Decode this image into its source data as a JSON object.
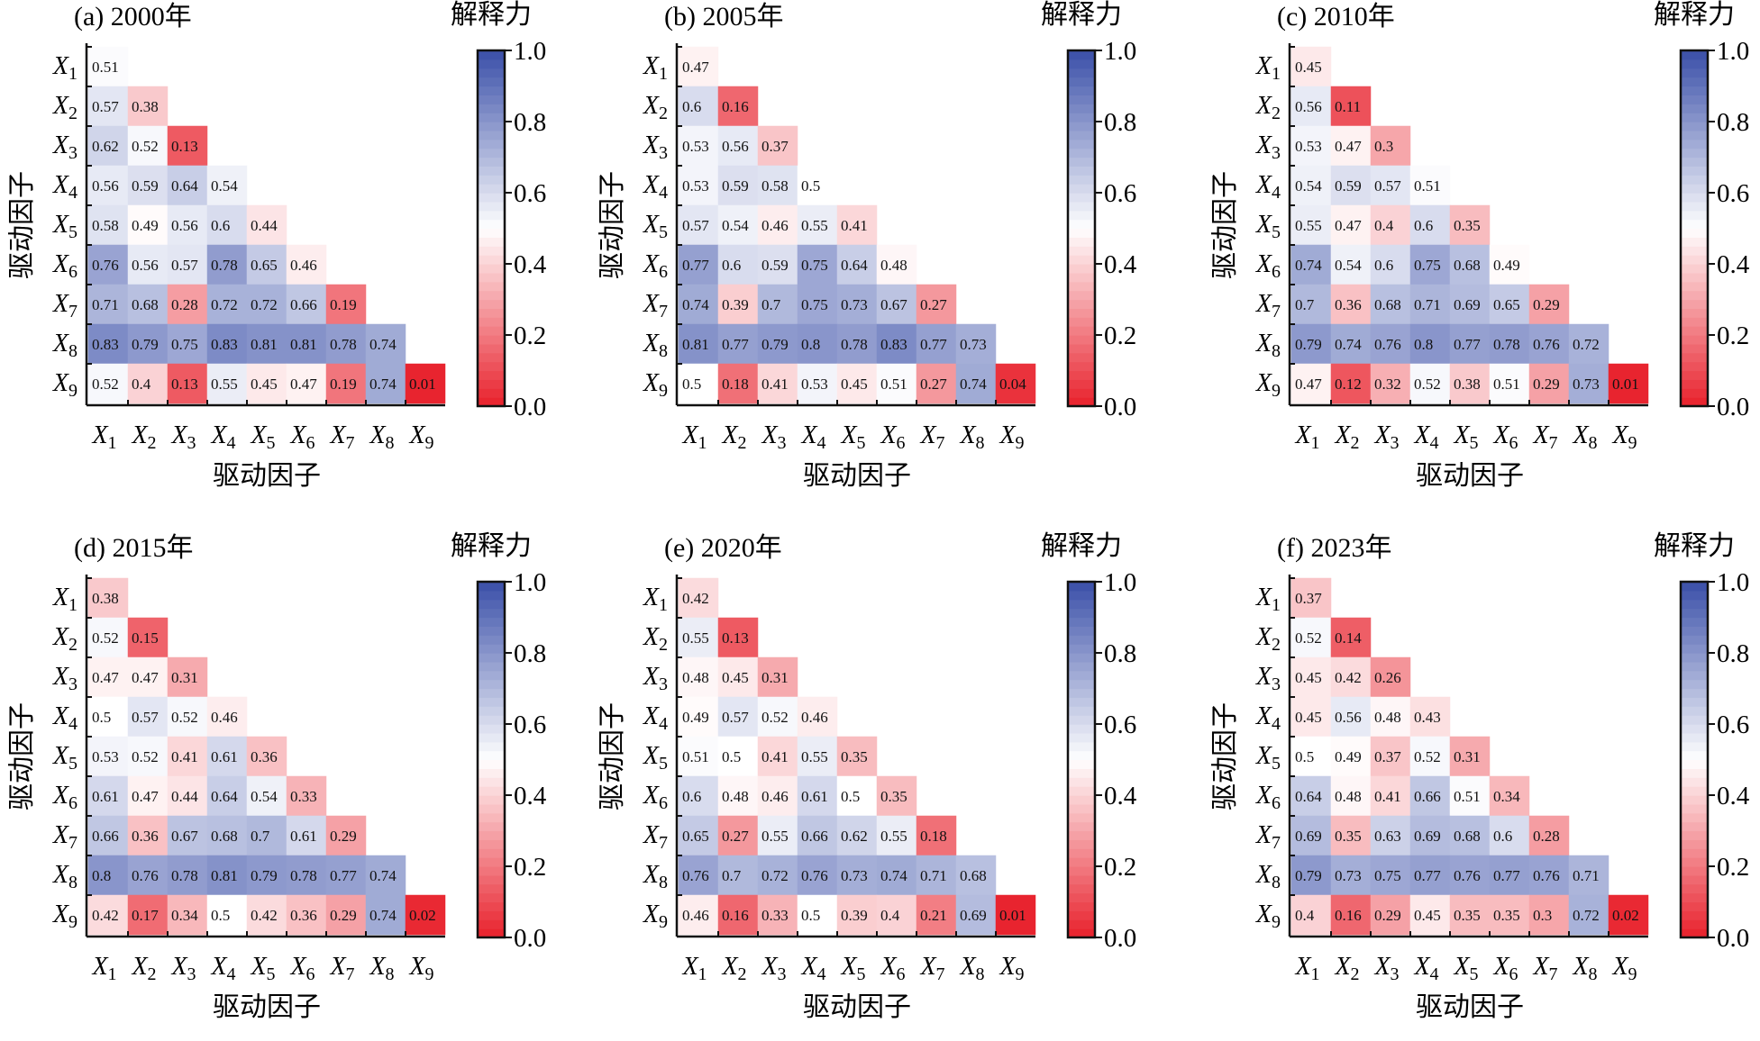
{
  "chart_data": [
    {
      "type": "heatmap",
      "title": "(a) 2000年",
      "xlabel": "驱动因子",
      "ylabel": "驱动因子",
      "colorbar_title": "解释力",
      "colorbar_range": [
        0.0,
        1.0
      ],
      "colorbar_ticks": [
        "0.0",
        "0.2",
        "0.4",
        "0.6",
        "0.8",
        "1.0"
      ],
      "categories": [
        "X1",
        "X2",
        "X3",
        "X4",
        "X5",
        "X6",
        "X7",
        "X8",
        "X9"
      ],
      "values": [
        [
          0.51
        ],
        [
          0.57,
          0.38
        ],
        [
          0.62,
          0.52,
          0.13
        ],
        [
          0.56,
          0.59,
          0.64,
          0.54
        ],
        [
          0.58,
          0.49,
          0.56,
          0.6,
          0.44
        ],
        [
          0.76,
          0.56,
          0.57,
          0.78,
          0.65,
          0.46
        ],
        [
          0.71,
          0.68,
          0.28,
          0.72,
          0.72,
          0.66,
          0.19
        ],
        [
          0.83,
          0.79,
          0.75,
          0.83,
          0.81,
          0.81,
          0.78,
          0.74
        ],
        [
          0.52,
          0.4,
          0.13,
          0.55,
          0.45,
          0.47,
          0.19,
          0.74,
          0.01
        ]
      ]
    },
    {
      "type": "heatmap",
      "title": "(b) 2005年",
      "xlabel": "驱动因子",
      "ylabel": "驱动因子",
      "colorbar_title": "解释力",
      "colorbar_range": [
        0.0,
        1.0
      ],
      "colorbar_ticks": [
        "0.0",
        "0.2",
        "0.4",
        "0.6",
        "0.8",
        "1.0"
      ],
      "categories": [
        "X1",
        "X2",
        "X3",
        "X4",
        "X5",
        "X6",
        "X7",
        "X8",
        "X9"
      ],
      "values": [
        [
          0.47
        ],
        [
          0.6,
          0.16
        ],
        [
          0.53,
          0.56,
          0.37
        ],
        [
          0.53,
          0.59,
          0.58,
          0.5
        ],
        [
          0.57,
          0.54,
          0.46,
          0.55,
          0.41
        ],
        [
          0.77,
          0.6,
          0.59,
          0.75,
          0.64,
          0.48
        ],
        [
          0.74,
          0.39,
          0.7,
          0.75,
          0.73,
          0.67,
          0.27
        ],
        [
          0.81,
          0.77,
          0.79,
          0.8,
          0.78,
          0.83,
          0.77,
          0.73
        ],
        [
          0.5,
          0.18,
          0.41,
          0.53,
          0.45,
          0.51,
          0.27,
          0.74,
          0.04
        ]
      ]
    },
    {
      "type": "heatmap",
      "title": "(c) 2010年",
      "xlabel": "驱动因子",
      "ylabel": "驱动因子",
      "colorbar_title": "解释力",
      "colorbar_range": [
        0.0,
        1.0
      ],
      "colorbar_ticks": [
        "0.0",
        "0.2",
        "0.4",
        "0.6",
        "0.8",
        "1.0"
      ],
      "categories": [
        "X1",
        "X2",
        "X3",
        "X4",
        "X5",
        "X6",
        "X7",
        "X8",
        "X9"
      ],
      "values": [
        [
          0.45
        ],
        [
          0.56,
          0.11
        ],
        [
          0.53,
          0.47,
          0.3
        ],
        [
          0.54,
          0.59,
          0.57,
          0.51
        ],
        [
          0.55,
          0.47,
          0.4,
          0.6,
          0.35
        ],
        [
          0.74,
          0.54,
          0.6,
          0.75,
          0.68,
          0.49
        ],
        [
          0.7,
          0.36,
          0.68,
          0.71,
          0.69,
          0.65,
          0.29
        ],
        [
          0.79,
          0.74,
          0.76,
          0.8,
          0.77,
          0.78,
          0.76,
          0.72
        ],
        [
          0.47,
          0.12,
          0.32,
          0.52,
          0.38,
          0.51,
          0.29,
          0.73,
          0.01
        ]
      ]
    },
    {
      "type": "heatmap",
      "title": "(d) 2015年",
      "xlabel": "驱动因子",
      "ylabel": "驱动因子",
      "colorbar_title": "解释力",
      "colorbar_range": [
        0.0,
        1.0
      ],
      "colorbar_ticks": [
        "0.0",
        "0.2",
        "0.4",
        "0.6",
        "0.8",
        "1.0"
      ],
      "categories": [
        "X1",
        "X2",
        "X3",
        "X4",
        "X5",
        "X6",
        "X7",
        "X8",
        "X9"
      ],
      "values": [
        [
          0.38
        ],
        [
          0.52,
          0.15
        ],
        [
          0.47,
          0.47,
          0.31
        ],
        [
          0.5,
          0.57,
          0.52,
          0.46
        ],
        [
          0.53,
          0.52,
          0.41,
          0.61,
          0.36
        ],
        [
          0.61,
          0.47,
          0.44,
          0.64,
          0.54,
          0.33
        ],
        [
          0.66,
          0.36,
          0.67,
          0.68,
          0.7,
          0.61,
          0.29
        ],
        [
          0.8,
          0.76,
          0.78,
          0.81,
          0.79,
          0.78,
          0.77,
          0.74
        ],
        [
          0.42,
          0.17,
          0.34,
          0.5,
          0.42,
          0.36,
          0.29,
          0.74,
          0.02
        ]
      ]
    },
    {
      "type": "heatmap",
      "title": "(e) 2020年",
      "xlabel": "驱动因子",
      "ylabel": "驱动因子",
      "colorbar_title": "解释力",
      "colorbar_range": [
        0.0,
        1.0
      ],
      "colorbar_ticks": [
        "0.0",
        "0.2",
        "0.4",
        "0.6",
        "0.8",
        "1.0"
      ],
      "categories": [
        "X1",
        "X2",
        "X3",
        "X4",
        "X5",
        "X6",
        "X7",
        "X8",
        "X9"
      ],
      "values": [
        [
          0.42
        ],
        [
          0.55,
          0.13
        ],
        [
          0.48,
          0.45,
          0.31
        ],
        [
          0.49,
          0.57,
          0.52,
          0.46
        ],
        [
          0.51,
          0.5,
          0.41,
          0.55,
          0.35
        ],
        [
          0.6,
          0.48,
          0.46,
          0.61,
          0.5,
          0.35
        ],
        [
          0.65,
          0.27,
          0.55,
          0.66,
          0.62,
          0.55,
          0.18
        ],
        [
          0.76,
          0.7,
          0.72,
          0.76,
          0.73,
          0.74,
          0.71,
          0.68
        ],
        [
          0.46,
          0.16,
          0.33,
          0.5,
          0.39,
          0.4,
          0.21,
          0.69,
          0.01
        ]
      ]
    },
    {
      "type": "heatmap",
      "title": "(f) 2023年",
      "xlabel": "驱动因子",
      "ylabel": "驱动因子",
      "colorbar_title": "解释力",
      "colorbar_range": [
        0.0,
        1.0
      ],
      "colorbar_ticks": [
        "0.0",
        "0.2",
        "0.4",
        "0.6",
        "0.8",
        "1.0"
      ],
      "categories": [
        "X1",
        "X2",
        "X3",
        "X4",
        "X5",
        "X6",
        "X7",
        "X8",
        "X9"
      ],
      "values": [
        [
          0.37
        ],
        [
          0.52,
          0.14
        ],
        [
          0.45,
          0.42,
          0.26
        ],
        [
          0.45,
          0.56,
          0.48,
          0.43
        ],
        [
          0.5,
          0.49,
          0.37,
          0.52,
          0.31
        ],
        [
          0.64,
          0.48,
          0.41,
          0.66,
          0.51,
          0.34
        ],
        [
          0.69,
          0.35,
          0.63,
          0.69,
          0.68,
          0.6,
          0.28
        ],
        [
          0.79,
          0.73,
          0.75,
          0.77,
          0.76,
          0.77,
          0.76,
          0.71
        ],
        [
          0.4,
          0.16,
          0.29,
          0.45,
          0.35,
          0.35,
          0.3,
          0.72,
          0.02
        ]
      ]
    }
  ],
  "colormap": {
    "low": "#e8202b",
    "mid": "#ffffff",
    "high": "#3a4fa8"
  }
}
